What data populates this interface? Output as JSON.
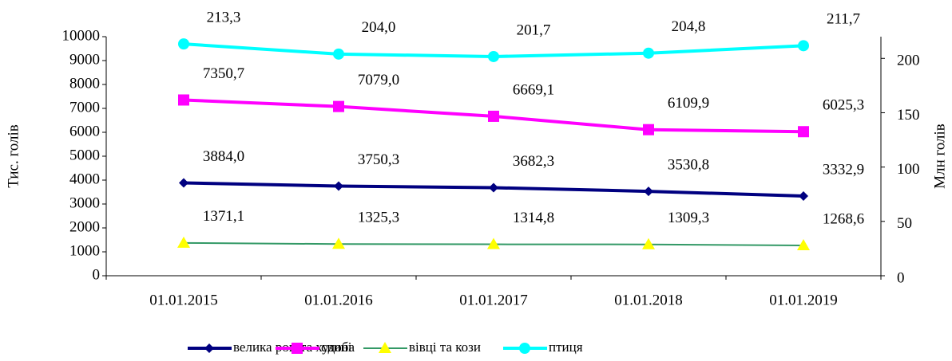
{
  "chart_data": {
    "type": "line",
    "categories": [
      "01.01.2015",
      "01.01.2016",
      "01.01.2017",
      "01.01.2018",
      "01.01.2019"
    ],
    "ylabel": "Тис. голів",
    "y2label": "Млн голів",
    "ylim": [
      0,
      10000
    ],
    "yticks": [
      0,
      1000,
      2000,
      3000,
      4000,
      5000,
      6000,
      7000,
      8000,
      9000,
      10000
    ],
    "y2lim": [
      0,
      220
    ],
    "y2ticks": [
      0,
      50,
      100,
      150,
      200
    ],
    "series": [
      {
        "name": "велика рогата худоба",
        "color": "#000080",
        "marker": "diamond",
        "values": [
          3884.0,
          3750.3,
          3682.3,
          3530.8,
          3332.9
        ],
        "value_labels": [
          "3884,0",
          "3750,3",
          "3682,3",
          "3530,8",
          "3332,9"
        ]
      },
      {
        "name": "свині",
        "color": "#ff00ff",
        "marker": "square",
        "values": [
          7350.7,
          7079.0,
          6669.1,
          6109.9,
          6025.3
        ],
        "value_labels": [
          "7350,7",
          "7079,0",
          "6669,1",
          "6109,9",
          "6025,3"
        ]
      },
      {
        "name": "вівці та кози",
        "color": "#339966",
        "marker": "triangle",
        "marker_color": "#ffff00",
        "values": [
          1371.1,
          1325.3,
          1314.8,
          1309.3,
          1268.6
        ],
        "value_labels": [
          "1371,1",
          "1325,3",
          "1314,8",
          "1309,3",
          "1268,6"
        ]
      },
      {
        "name": "птиця",
        "color": "#00ffff",
        "marker": "circle",
        "axis": "y2",
        "values": [
          213.3,
          204.0,
          201.7,
          204.8,
          211.7
        ],
        "value_labels": [
          "213,3",
          "204,0",
          "201,7",
          "204,8",
          "211,7"
        ]
      }
    ],
    "legend": "bottom"
  }
}
